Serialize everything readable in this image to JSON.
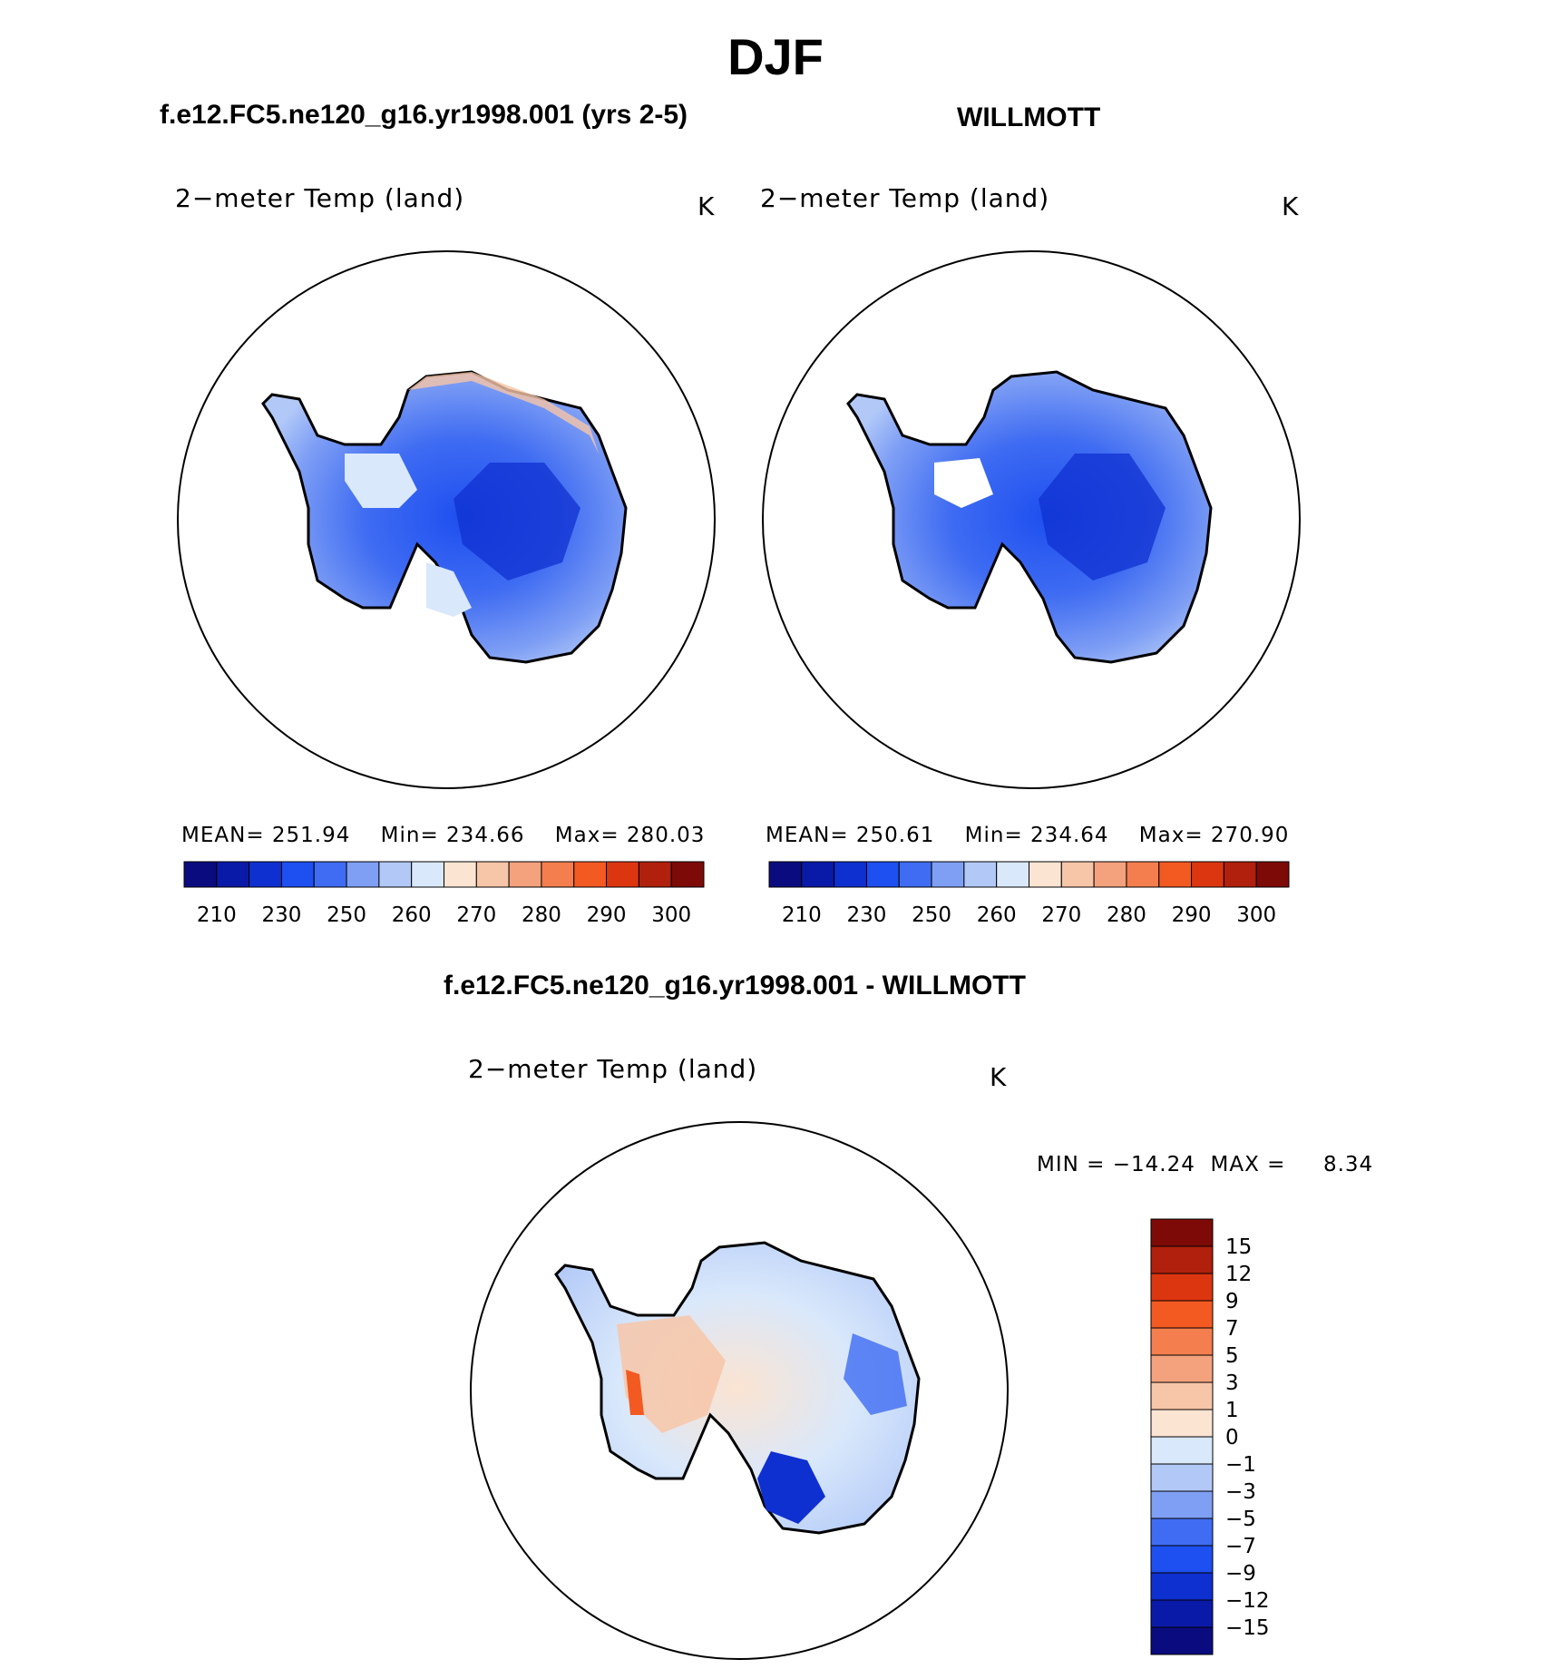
{
  "title": "DJF",
  "panels": [
    {
      "title": "f.e12.FC5.ne120_g16.yr1998.001 (yrs 2-5)",
      "variable": "2−meter Temp (land)",
      "units": "K",
      "stats": {
        "mean_label": "MEAN=",
        "mean": "251.94",
        "min_label": "Min=",
        "min": "234.66",
        "max_label": "Max=",
        "max": "280.03"
      }
    },
    {
      "title": "WILLMOTT",
      "variable": "2−meter Temp (land)",
      "units": "K",
      "stats": {
        "mean_label": "MEAN=",
        "mean": "250.61",
        "min_label": "Min=",
        "min": "234.64",
        "max_label": "Max=",
        "max": "270.90"
      }
    }
  ],
  "difference": {
    "title": "f.e12.FC5.ne120_g16.yr1998.001 - WILLMOTT",
    "variable": "2−meter Temp (land)",
    "units": "K",
    "min_label": "MIN =",
    "min": "−14.24",
    "max_label": "MAX =",
    "max": "8.34"
  },
  "colors": {
    "abs_scale": [
      "#0b0b80",
      "#0a1aa8",
      "#0f30d0",
      "#1e4ff0",
      "#3f6cf2",
      "#7f9ff5",
      "#b2c9f8",
      "#d9e8fb",
      "#fbe4d2",
      "#f7c5a8",
      "#f4a27e",
      "#f47e4e",
      "#f35a22",
      "#dc3610",
      "#b0200c",
      "#7e0a07"
    ],
    "diff_scale": [
      "#7e0a07",
      "#b0200c",
      "#dc3610",
      "#f35a22",
      "#f47e4e",
      "#f4a27e",
      "#f7c5a8",
      "#fbe4d2",
      "#d9e8fb",
      "#b2c9f8",
      "#7f9ff5",
      "#3f6cf2",
      "#1e4ff0",
      "#0f30d0",
      "#0a1aa8",
      "#0b0b80"
    ]
  },
  "chart_data": [
    {
      "type": "heatmap",
      "title": "f.e12.FC5.ne120_g16.yr1998.001 (yrs 2-5)",
      "subtitle": "2−meter Temp (land)",
      "units": "K",
      "mean": 251.94,
      "min": 234.66,
      "max": 280.03,
      "colorbar_ticks": [
        "210",
        "230",
        "250",
        "260",
        "270",
        "280",
        "290",
        "300"
      ]
    },
    {
      "type": "heatmap",
      "title": "WILLMOTT",
      "subtitle": "2−meter Temp (land)",
      "units": "K",
      "mean": 250.61,
      "min": 234.64,
      "max": 270.9,
      "colorbar_ticks": [
        "210",
        "230",
        "250",
        "260",
        "270",
        "280",
        "290",
        "300"
      ]
    },
    {
      "type": "heatmap",
      "title": "f.e12.FC5.ne120_g16.yr1998.001 - WILLMOTT",
      "subtitle": "2−meter Temp (land)",
      "units": "K",
      "min": -14.24,
      "max": 8.34,
      "colorbar_ticks": [
        "15",
        "12",
        "9",
        "7",
        "5",
        "3",
        "1",
        "0",
        "−1",
        "−3",
        "−5",
        "−7",
        "−9",
        "−12",
        "−15"
      ]
    }
  ]
}
